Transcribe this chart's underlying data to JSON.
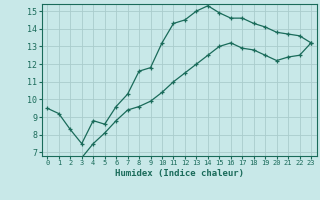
{
  "title": "",
  "xlabel": "Humidex (Indice chaleur)",
  "bg_color": "#c8e8e8",
  "grid_color": "#aacccc",
  "line_color": "#1a6b5a",
  "xlim": [
    -0.5,
    23.5
  ],
  "ylim": [
    6.8,
    15.4
  ],
  "xticks": [
    0,
    1,
    2,
    3,
    4,
    5,
    6,
    7,
    8,
    9,
    10,
    11,
    12,
    13,
    14,
    15,
    16,
    17,
    18,
    19,
    20,
    21,
    22,
    23
  ],
  "yticks": [
    7,
    8,
    9,
    10,
    11,
    12,
    13,
    14,
    15
  ],
  "line1_x": [
    0,
    1,
    2,
    3,
    4,
    5,
    6,
    7,
    8,
    9,
    10,
    11,
    12,
    13,
    14,
    15,
    16,
    17,
    18,
    19,
    20,
    21,
    22,
    23
  ],
  "line1_y": [
    9.5,
    9.2,
    8.3,
    7.5,
    8.8,
    8.6,
    9.6,
    10.3,
    11.6,
    11.8,
    13.2,
    14.3,
    14.5,
    15.0,
    15.3,
    14.9,
    14.6,
    14.6,
    14.3,
    14.1,
    13.8,
    13.7,
    13.6,
    13.2
  ],
  "line2_x": [
    3,
    4,
    5,
    6,
    7,
    8,
    9,
    10,
    11,
    12,
    13,
    14,
    15,
    16,
    17,
    18,
    19,
    20,
    21,
    22,
    23
  ],
  "line2_y": [
    6.7,
    7.5,
    8.1,
    8.8,
    9.4,
    9.6,
    9.9,
    10.4,
    11.0,
    11.5,
    12.0,
    12.5,
    13.0,
    13.2,
    12.9,
    12.8,
    12.5,
    12.2,
    12.4,
    12.5,
    13.2
  ]
}
